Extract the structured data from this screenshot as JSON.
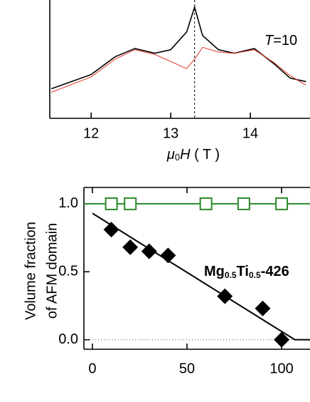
{
  "chart_data": [
    {
      "type": "line",
      "xlabel_parts": [
        "μ",
        "0",
        "H",
        " ( T )"
      ],
      "annotation_parts": [
        "T",
        "=10"
      ],
      "xlim": [
        11.48,
        14.75
      ],
      "ylim": [
        0,
        1
      ],
      "xticks": [
        12,
        13,
        14
      ],
      "vline": 13.3,
      "series": [
        {
          "color": "#000000",
          "x": [
            11.5,
            12.0,
            12.3,
            12.55,
            12.8,
            13.0,
            13.2,
            13.3,
            13.4,
            13.6,
            13.8,
            14.05,
            14.3,
            14.5,
            14.7
          ],
          "values": [
            0.25,
            0.37,
            0.52,
            0.59,
            0.55,
            0.58,
            0.73,
            0.94,
            0.7,
            0.58,
            0.55,
            0.59,
            0.46,
            0.34,
            0.31
          ]
        },
        {
          "color": "#e03020",
          "x": [
            11.5,
            12.0,
            12.3,
            12.55,
            12.8,
            13.0,
            13.2,
            13.3,
            13.4,
            13.6,
            13.8,
            14.05,
            14.3,
            14.5,
            14.7
          ],
          "values": [
            0.22,
            0.35,
            0.5,
            0.58,
            0.54,
            0.48,
            0.42,
            0.5,
            0.6,
            0.56,
            0.55,
            0.58,
            0.47,
            0.36,
            0.28
          ]
        }
      ]
    },
    {
      "type": "scatter",
      "ylabel_lines": [
        "Volume fraction",
        "of AFM domain"
      ],
      "annotation_parts": [
        "Mg",
        "0.5",
        "Ti",
        "0.5",
        "-426"
      ],
      "xlim": [
        -4.5,
        115
      ],
      "ylim": [
        -0.07,
        1.12
      ],
      "xticks": [
        0,
        50,
        100
      ],
      "yticks": [
        {
          "value": 0,
          "label": "0.0"
        },
        0.5,
        {
          "value": 1,
          "label": "1.0"
        }
      ],
      "zero_line": 0,
      "series": [
        {
          "color": "#000000",
          "marker": "diamond",
          "x": [
            10,
            20,
            30,
            40,
            70,
            90,
            100
          ],
          "values": [
            0.81,
            0.68,
            0.65,
            0.62,
            0.32,
            0.23,
            0
          ]
        },
        {
          "color": "#2a8a2a",
          "marker": "square",
          "connect": true,
          "x": [
            -4.5,
            10,
            20,
            60,
            80,
            100,
            115
          ],
          "values": [
            1,
            1,
            1,
            1,
            1,
            1,
            1
          ],
          "hidden_ends": true
        },
        {
          "color": "#000000",
          "marker": "none",
          "connect": true,
          "x": [
            0,
            107,
            115
          ],
          "values": [
            0.93,
            0,
            0
          ]
        }
      ]
    }
  ]
}
